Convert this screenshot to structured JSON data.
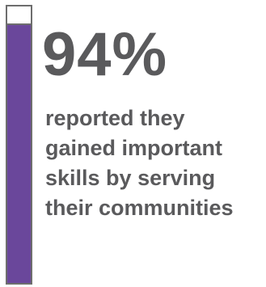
{
  "chart_data": {
    "type": "bar",
    "values": [
      94
    ],
    "value_unit": "%",
    "max": 100,
    "ylim": [
      0,
      100
    ],
    "fill_color": "#6a479b",
    "track_color": "#ffffff",
    "border_color": "#6e6e6e"
  },
  "stat": {
    "value_label": "94%",
    "caption_lines": [
      "reported they",
      "gained important",
      "skills by serving",
      "their communities"
    ]
  },
  "colors": {
    "text": "#5a5a5c",
    "accent": "#6a479b"
  }
}
